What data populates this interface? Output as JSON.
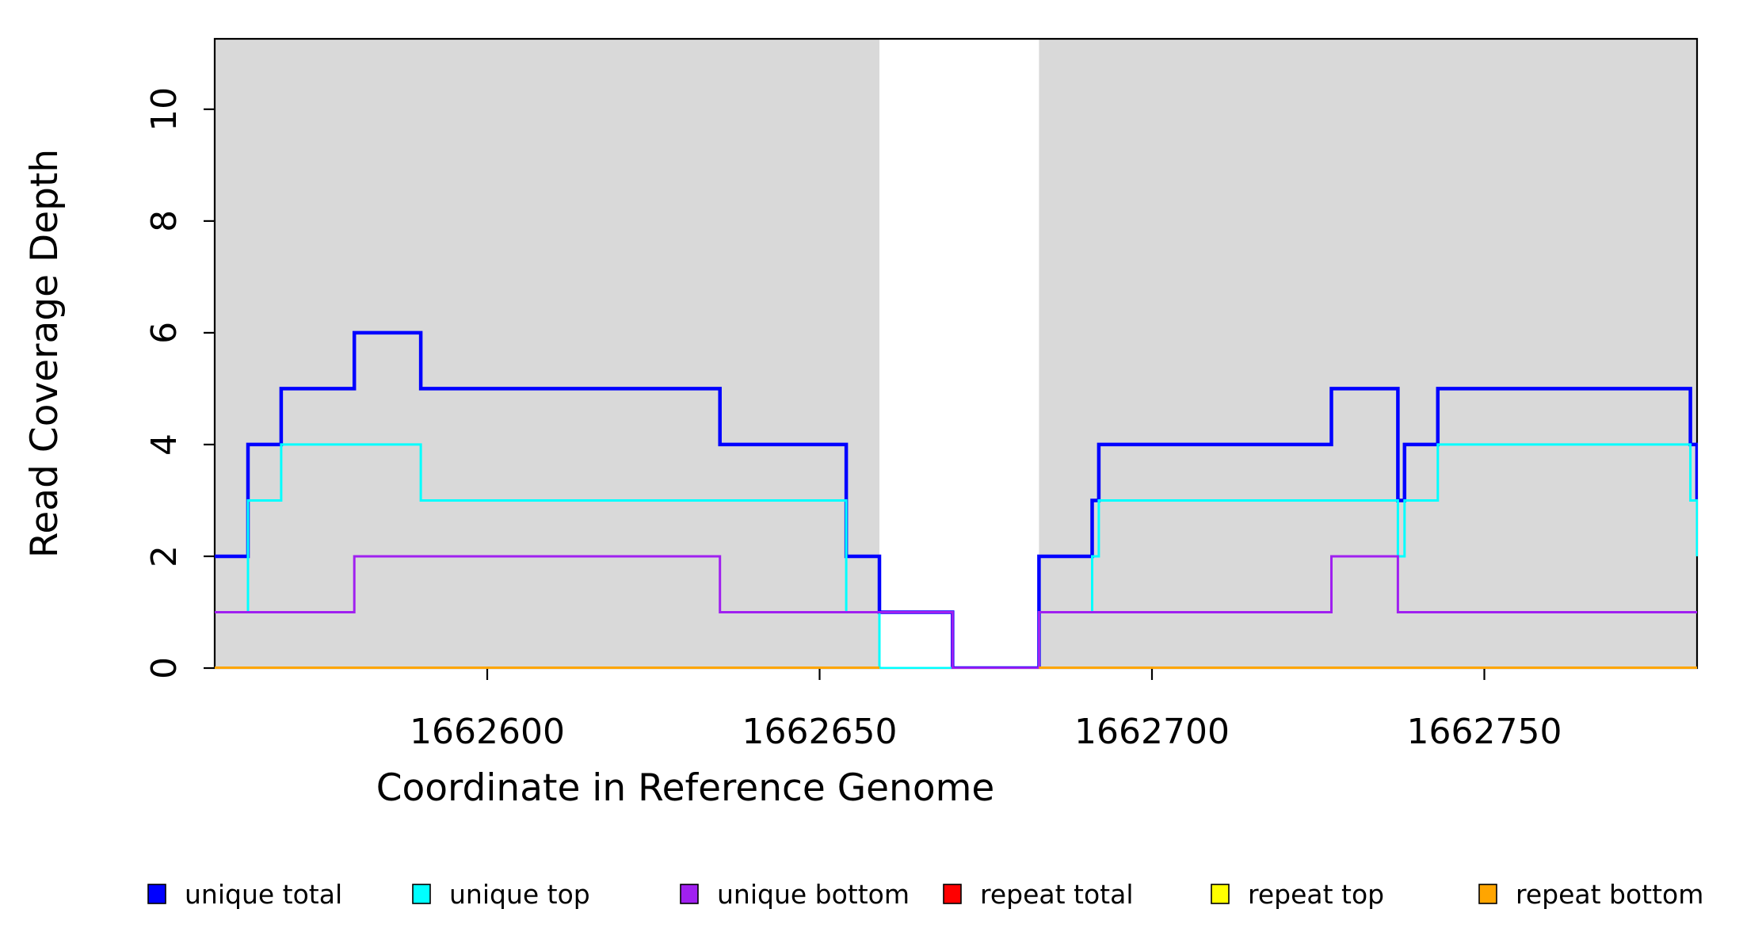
{
  "chart_data": {
    "type": "line",
    "subtype": "step",
    "title": "",
    "xlabel": "Coordinate in Reference Genome",
    "ylabel": "Read Coverage Depth",
    "xlim": [
      1662559,
      1662782
    ],
    "ylim": [
      0,
      11.26
    ],
    "grid": false,
    "background_color": "#ffffff",
    "shade_color": "#d9d9d9",
    "axis_color": "#000000",
    "shaded_regions": [
      [
        1662559,
        1662659
      ],
      [
        1662683,
        1662782
      ]
    ],
    "x_ticks": [
      {
        "value": 1662600,
        "label": "1662600"
      },
      {
        "value": 1662650,
        "label": "1662650"
      },
      {
        "value": 1662700,
        "label": "1662700"
      },
      {
        "value": 1662750,
        "label": "1662750"
      }
    ],
    "y_ticks": [
      {
        "value": 0,
        "label": "0"
      },
      {
        "value": 2,
        "label": "2"
      },
      {
        "value": 4,
        "label": "4"
      },
      {
        "value": 6,
        "label": "6"
      },
      {
        "value": 8,
        "label": "8"
      },
      {
        "value": 10,
        "label": "10"
      }
    ],
    "legend_position": "bottom",
    "series": [
      {
        "name": "unique total",
        "color": "#0000ff",
        "lwd": 4.5,
        "segments": [
          [
            [
              1662559,
              2
            ],
            [
              1662564,
              4
            ],
            [
              1662569,
              5
            ],
            [
              1662580,
              6
            ],
            [
              1662590,
              5
            ],
            [
              1662635,
              4
            ],
            [
              1662654,
              2
            ],
            [
              1662659,
              1
            ],
            [
              1662670,
              0
            ],
            [
              1662683,
              2
            ],
            [
              1662691,
              3
            ],
            [
              1662692,
              4
            ],
            [
              1662727,
              5
            ],
            [
              1662737,
              3
            ],
            [
              1662738,
              4
            ],
            [
              1662743,
              5
            ],
            [
              1662781,
              4
            ],
            [
              1662782,
              3
            ]
          ]
        ]
      },
      {
        "name": "unique top",
        "color": "#00ffff",
        "lwd": 3,
        "segments": [
          [
            [
              1662559,
              1
            ],
            [
              1662564,
              3
            ],
            [
              1662569,
              4
            ],
            [
              1662590,
              3
            ],
            [
              1662654,
              1
            ],
            [
              1662659,
              0
            ],
            [
              1662683,
              1
            ],
            [
              1662691,
              2
            ],
            [
              1662692,
              3
            ],
            [
              1662737,
              2
            ],
            [
              1662738,
              3
            ],
            [
              1662743,
              4
            ],
            [
              1662781,
              3
            ],
            [
              1662782,
              2
            ]
          ]
        ]
      },
      {
        "name": "unique bottom",
        "color": "#a020f0",
        "lwd": 3,
        "segments": [
          [
            [
              1662559,
              1
            ],
            [
              1662580,
              2
            ],
            [
              1662635,
              1
            ],
            [
              1662670,
              0
            ],
            [
              1662683,
              1
            ],
            [
              1662727,
              2
            ],
            [
              1662737,
              1
            ],
            [
              1662782,
              1
            ]
          ]
        ]
      },
      {
        "name": "repeat total",
        "color": "#ff0000",
        "lwd": 3,
        "segments": [
          [
            [
              1662559,
              0
            ],
            [
              1662659,
              0
            ]
          ],
          [
            [
              1662683,
              0
            ],
            [
              1662782,
              0
            ]
          ]
        ]
      },
      {
        "name": "repeat top",
        "color": "#ffff00",
        "lwd": 3,
        "segments": [
          [
            [
              1662559,
              0
            ],
            [
              1662659,
              0
            ]
          ],
          [
            [
              1662683,
              0
            ],
            [
              1662782,
              0
            ]
          ]
        ]
      },
      {
        "name": "repeat bottom",
        "color": "#ffa500",
        "lwd": 4,
        "segments": [
          [
            [
              1662559,
              0
            ],
            [
              1662659,
              0
            ]
          ],
          [
            [
              1662683,
              0
            ],
            [
              1662782,
              0
            ]
          ]
        ]
      }
    ]
  }
}
